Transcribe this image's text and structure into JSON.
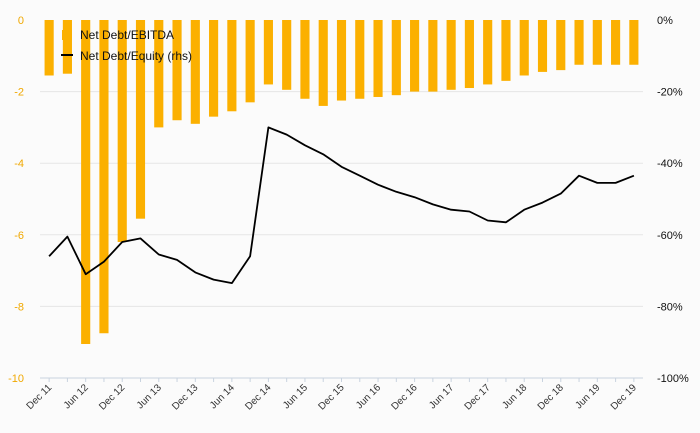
{
  "chart_data": {
    "type": "bar+line",
    "categories": [
      "Dec 11",
      "",
      "Jun 12",
      "",
      "Dec 12",
      "",
      "Jun 13",
      "",
      "Dec 13",
      "",
      "Jun 14",
      "",
      "Dec 14",
      "",
      "Jun 15",
      "",
      "Dec 15",
      "",
      "Jun 16",
      "",
      "Dec 16",
      "",
      "Jun 17",
      "",
      "Dec 17",
      "",
      "Jun 18",
      "",
      "Dec 18",
      "",
      "Jun 19",
      "",
      "Dec 19"
    ],
    "series": [
      {
        "name": "Net Debt/EBITDA",
        "kind": "bar",
        "axis": "left",
        "color": "#fbb000",
        "values": [
          -1.55,
          -1.5,
          -9.05,
          -8.75,
          -6.2,
          -5.55,
          -3.0,
          -2.8,
          -2.9,
          -2.7,
          -2.55,
          -2.3,
          -1.8,
          -1.95,
          -2.2,
          -2.4,
          -2.25,
          -2.2,
          -2.15,
          -2.1,
          -2.0,
          -2.0,
          -1.95,
          -1.9,
          -1.8,
          -1.7,
          -1.55,
          -1.45,
          -1.4,
          -1.25,
          -1.25,
          -1.25,
          -1.25
        ]
      },
      {
        "name": "Net Debt/Equity (rhs)",
        "kind": "line",
        "axis": "right",
        "color": "#000000",
        "values": [
          -66,
          -60.5,
          -71,
          -67.5,
          -62,
          -61,
          -65.5,
          -67,
          -70.5,
          -72.5,
          -73.5,
          -66,
          -30,
          -32,
          -35,
          -37.5,
          -41,
          -43.5,
          -46,
          -48,
          -49.5,
          -51.5,
          -53,
          -53.5,
          -56,
          -56.5,
          -53,
          -51,
          -48.5,
          -43.5,
          -45.5,
          -45.5,
          -43.5
        ]
      }
    ],
    "y_left": {
      "ylim": [
        -10,
        0
      ],
      "ticks": [
        "0",
        "-2",
        "-4",
        "-6",
        "-8",
        "-10"
      ],
      "values": [
        0,
        -2,
        -4,
        -6,
        -8,
        -10
      ]
    },
    "y_right": {
      "ylim": [
        -100,
        0
      ],
      "ticks": [
        "0%",
        "-20%",
        "-40%",
        "-60%",
        "-80%",
        "-100%"
      ],
      "values": [
        0,
        -20,
        -40,
        -60,
        -80,
        -100
      ]
    },
    "legend": {
      "position": "top-left",
      "items": [
        "Net Debt/EBITDA",
        "Net Debt/Equity (rhs)"
      ]
    },
    "grid": true,
    "colors": {
      "bar": "#fbb000",
      "line": "#000000",
      "left_axis_text": "#f0a800",
      "grid": "#e6e6e6"
    }
  }
}
